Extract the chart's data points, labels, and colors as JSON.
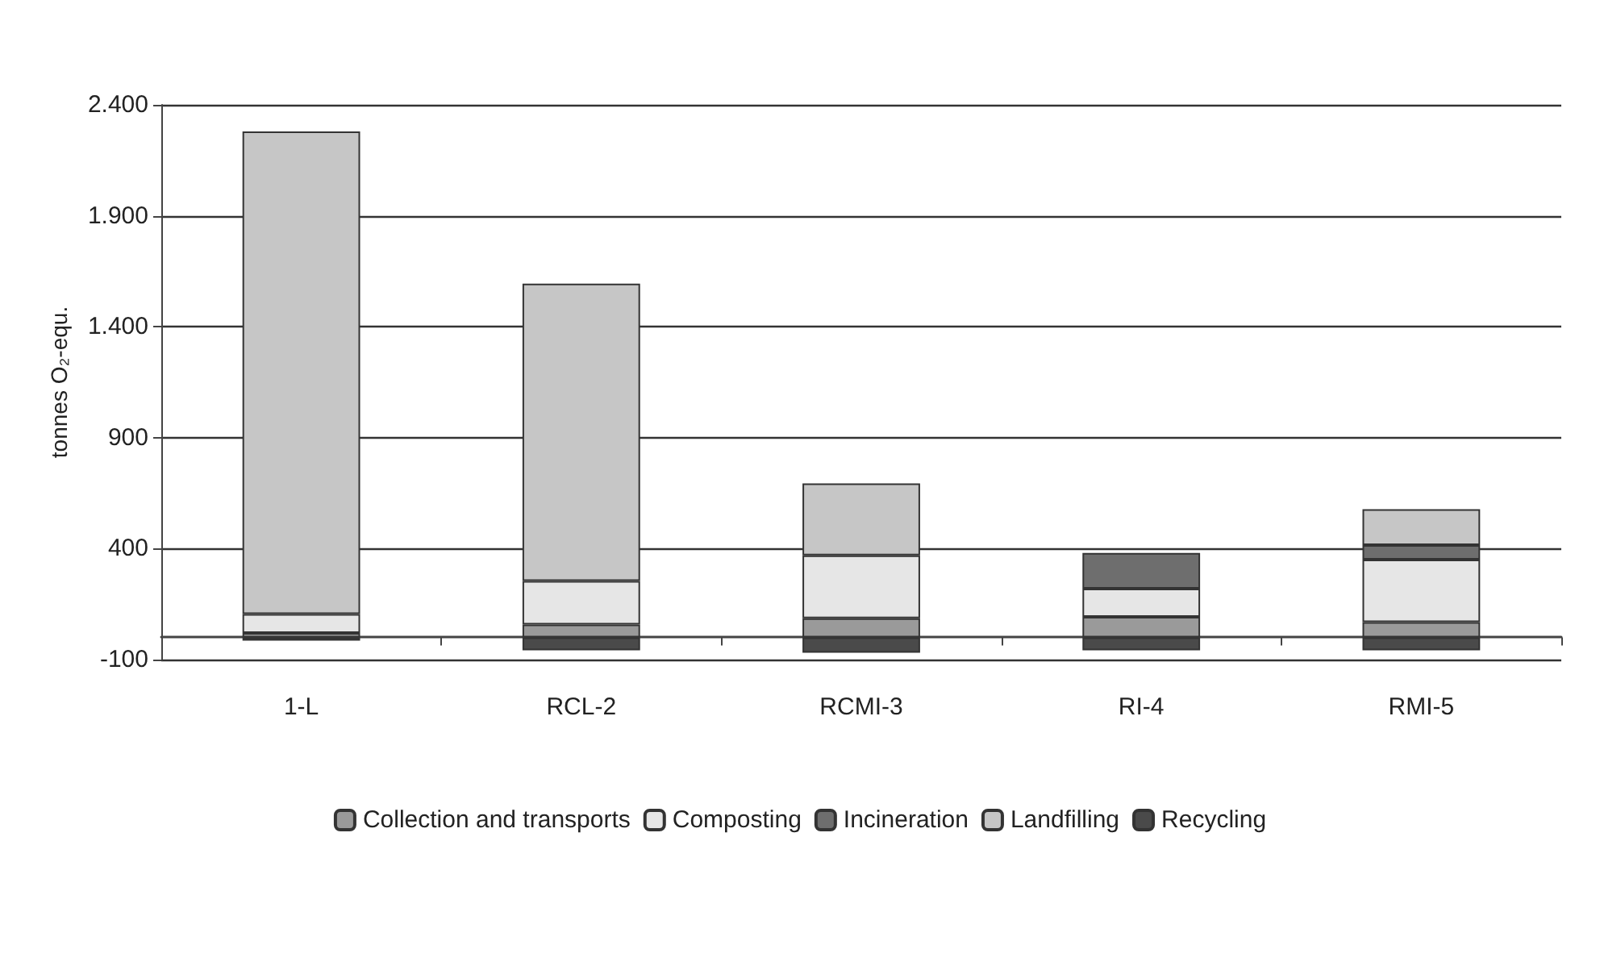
{
  "chart_data": {
    "type": "bar",
    "stacked": true,
    "ylabel": "tonnes O₂-equ.",
    "categories": [
      "1-L",
      "RCL-2",
      "RCMI-3",
      "RI-4",
      "RMI-5"
    ],
    "series": [
      {
        "name": "Collection and transports",
        "color": "#9a9a9a",
        "values": [
          20,
          58,
          86,
          93,
          69
        ]
      },
      {
        "name": "Composting",
        "color": "#e6e6e6",
        "values": [
          85,
          196,
          284,
          127,
          282
        ]
      },
      {
        "name": "Incineration",
        "color": "#6e6e6e",
        "values": [
          null,
          null,
          null,
          161,
          65
        ]
      },
      {
        "name": "Landfilling",
        "color": "#c6c6c6",
        "values": [
          2175,
          1340,
          324,
          null,
          162
        ]
      },
      {
        "name": "Recycling",
        "color": "#4a4a4a",
        "values": [
          -15,
          -58,
          -69,
          -58,
          -58
        ]
      }
    ],
    "ylim": [
      -100,
      2400
    ],
    "yticks": [
      {
        "value": -100,
        "label": "-100"
      },
      {
        "value": 400,
        "label": "400"
      },
      {
        "value": 900,
        "label": "900"
      },
      {
        "value": 1400,
        "label": "1.400"
      },
      {
        "value": 1900,
        "label": "1.900"
      },
      {
        "value": 2400,
        "label": "2.400"
      }
    ],
    "grid": "y",
    "legend": "bottom"
  }
}
